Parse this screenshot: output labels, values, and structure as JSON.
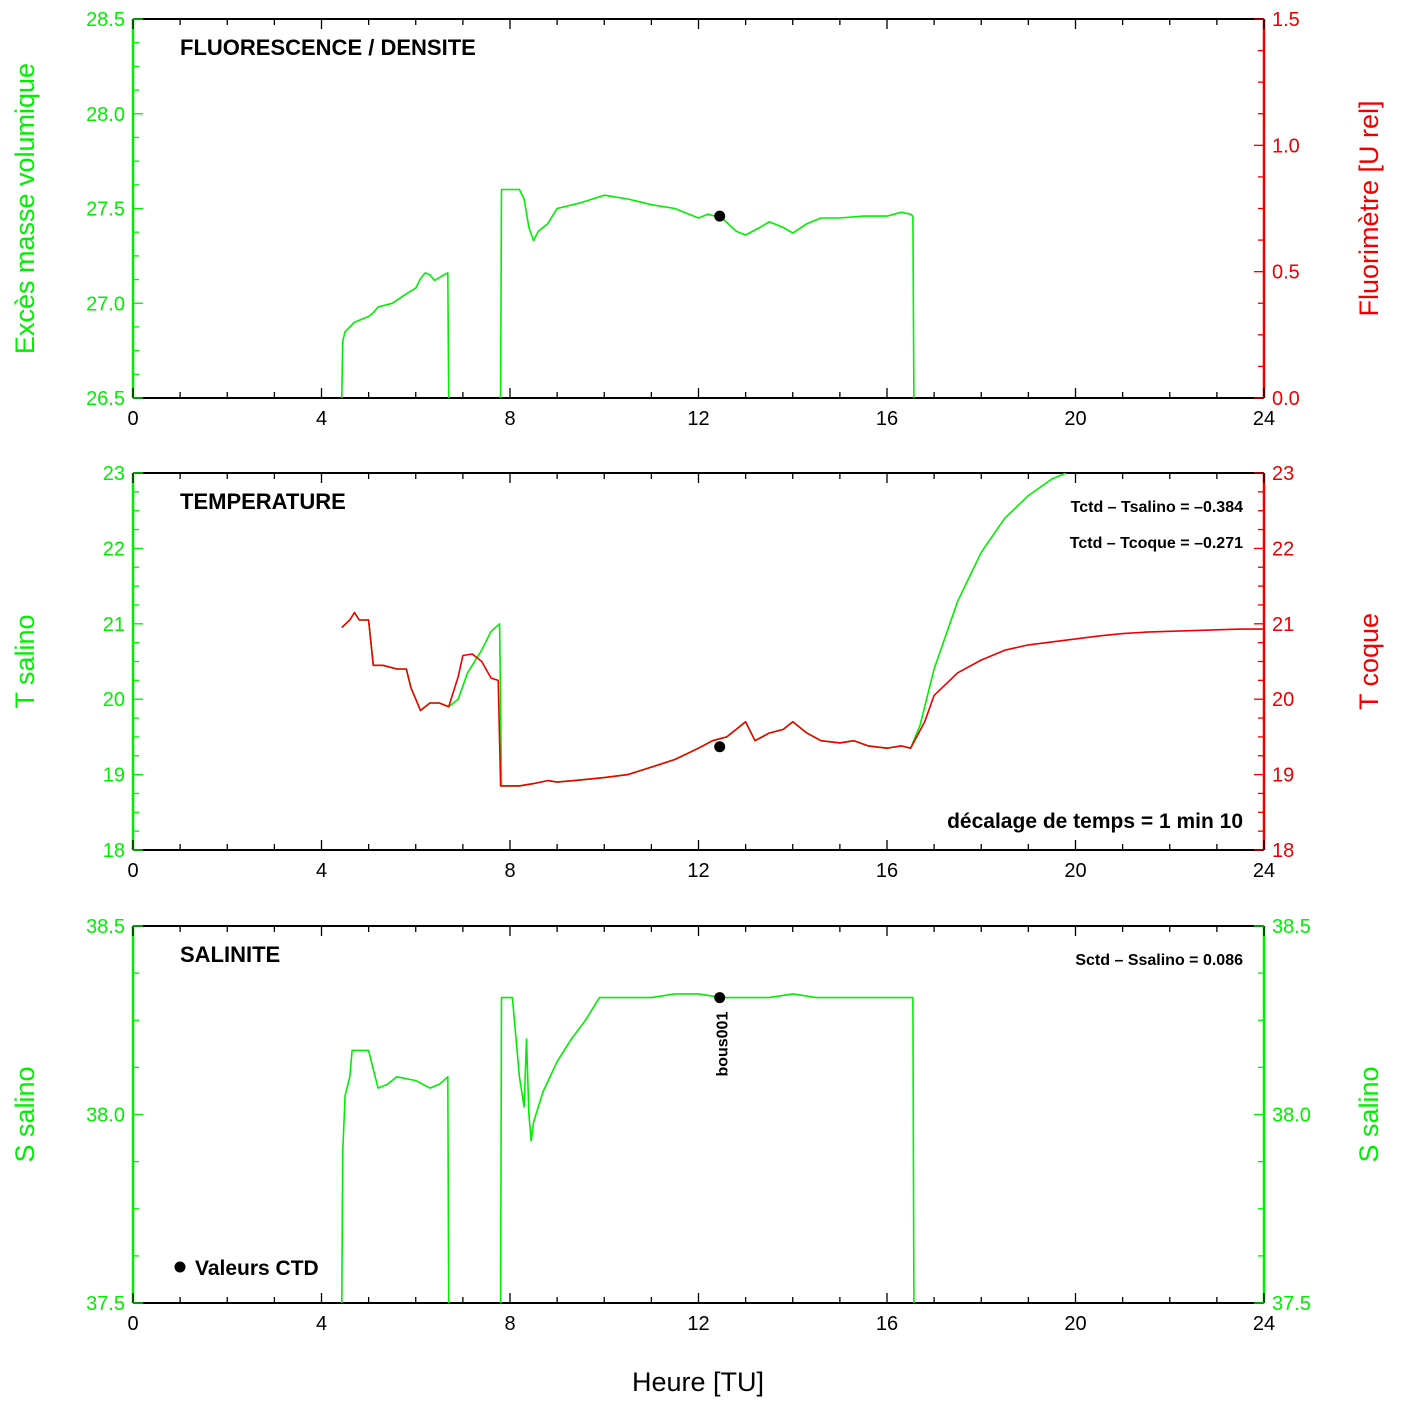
{
  "colors": {
    "green": "#00ee00",
    "red": "#ee0000",
    "black": "#000000"
  },
  "xlabel": "Heure [TU]",
  "chart_data": [
    {
      "type": "line",
      "title": "FLUORESCENCE / DENSITE",
      "xlim": [
        0,
        24
      ],
      "xticks": [
        "0",
        "4",
        "8",
        "12",
        "16",
        "20",
        "24"
      ],
      "ylabel_left": "Excès masse volumique",
      "ylabel_right": "Fluorimètre [U rel]",
      "ylim_left": [
        26.5,
        28.5
      ],
      "ylim_right": [
        0.0,
        1.5
      ],
      "yticks_left": [
        "26.5",
        "27.0",
        "27.5",
        "28.0",
        "28.5"
      ],
      "yticks_right": [
        "0.0",
        "0.5",
        "1.0",
        "1.5"
      ],
      "annotations": [],
      "ctd_points": [
        {
          "x": 12.45,
          "y": 27.46
        }
      ],
      "series": [
        {
          "color": "green",
          "segments": [
            [
              [
                4.43,
                26.5
              ],
              [
                4.45,
                26.8
              ],
              [
                4.5,
                26.85
              ],
              [
                4.7,
                26.9
              ],
              [
                4.9,
                26.92
              ],
              [
                5.0,
                26.93
              ],
              [
                5.1,
                26.95
              ],
              [
                5.2,
                26.98
              ],
              [
                5.5,
                27.0
              ],
              [
                5.8,
                27.05
              ],
              [
                6.0,
                27.08
              ],
              [
                6.1,
                27.13
              ],
              [
                6.2,
                27.16
              ],
              [
                6.3,
                27.15
              ],
              [
                6.4,
                27.12
              ],
              [
                6.6,
                27.15
              ],
              [
                6.68,
                27.16
              ],
              [
                6.7,
                26.5
              ]
            ],
            [
              [
                7.8,
                26.5
              ],
              [
                7.82,
                27.6
              ],
              [
                8.2,
                27.6
              ],
              [
                8.3,
                27.55
              ],
              [
                8.4,
                27.4
              ],
              [
                8.5,
                27.33
              ],
              [
                8.6,
                27.38
              ],
              [
                8.8,
                27.42
              ],
              [
                9.0,
                27.5
              ],
              [
                9.5,
                27.53
              ],
              [
                10.0,
                27.57
              ],
              [
                10.5,
                27.55
              ],
              [
                11.0,
                27.52
              ],
              [
                11.5,
                27.5
              ],
              [
                11.8,
                27.47
              ],
              [
                12.0,
                27.45
              ],
              [
                12.2,
                27.47
              ],
              [
                12.5,
                27.45
              ],
              [
                12.8,
                27.38
              ],
              [
                13.0,
                27.36
              ],
              [
                13.3,
                27.4
              ],
              [
                13.5,
                27.43
              ],
              [
                13.8,
                27.4
              ],
              [
                14.0,
                27.37
              ],
              [
                14.3,
                27.42
              ],
              [
                14.6,
                27.45
              ],
              [
                15.0,
                27.45
              ],
              [
                15.5,
                27.46
              ],
              [
                16.0,
                27.46
              ],
              [
                16.3,
                27.48
              ],
              [
                16.5,
                27.47
              ],
              [
                16.55,
                27.46
              ],
              [
                16.57,
                26.5
              ]
            ]
          ]
        }
      ]
    },
    {
      "type": "line",
      "title": "TEMPERATURE",
      "xlim": [
        0,
        24
      ],
      "xticks": [
        "0",
        "4",
        "8",
        "12",
        "16",
        "20",
        "24"
      ],
      "ylabel_left": "T salino",
      "ylabel_right": "T coque",
      "ylim_left": [
        18,
        23
      ],
      "ylim_right": [
        18,
        23
      ],
      "yticks_left": [
        "18",
        "19",
        "20",
        "21",
        "22",
        "23"
      ],
      "yticks_right": [
        "18",
        "19",
        "20",
        "21",
        "22",
        "23"
      ],
      "annotations": [
        "Tctd – Tsalino = –0.384",
        "Tctd – Tcoque  = –0.271"
      ],
      "bottom_annotation": "décalage de temps = 1 min 10",
      "ctd_points": [
        {
          "x": 12.45,
          "y": 19.37
        }
      ],
      "series": [
        {
          "color": "green",
          "segments": [
            [
              [
                4.43,
                20.95
              ],
              [
                4.6,
                21.05
              ],
              [
                4.7,
                21.15
              ],
              [
                4.8,
                21.05
              ],
              [
                5.0,
                21.05
              ],
              [
                5.1,
                20.45
              ],
              [
                5.3,
                20.45
              ],
              [
                5.6,
                20.4
              ],
              [
                5.8,
                20.4
              ],
              [
                5.9,
                20.15
              ],
              [
                6.0,
                20.0
              ],
              [
                6.1,
                19.85
              ],
              [
                6.3,
                19.95
              ],
              [
                6.5,
                19.95
              ],
              [
                6.7,
                19.9
              ],
              [
                6.9,
                20.0
              ],
              [
                7.1,
                20.35
              ],
              [
                7.4,
                20.65
              ],
              [
                7.6,
                20.9
              ],
              [
                7.78,
                21.0
              ],
              [
                7.82,
                18.85
              ],
              [
                8.2,
                18.85
              ],
              [
                8.5,
                18.88
              ],
              [
                8.8,
                18.92
              ],
              [
                9.0,
                18.9
              ],
              [
                9.5,
                18.93
              ],
              [
                10.0,
                18.96
              ],
              [
                10.5,
                19.0
              ],
              [
                11.0,
                19.1
              ],
              [
                11.5,
                19.2
              ],
              [
                12.0,
                19.35
              ],
              [
                12.3,
                19.45
              ],
              [
                12.6,
                19.5
              ],
              [
                12.8,
                19.6
              ],
              [
                13.0,
                19.7
              ],
              [
                13.2,
                19.45
              ],
              [
                13.5,
                19.55
              ],
              [
                13.8,
                19.6
              ],
              [
                14.0,
                19.7
              ],
              [
                14.3,
                19.55
              ],
              [
                14.6,
                19.45
              ],
              [
                15.0,
                19.42
              ],
              [
                15.3,
                19.45
              ],
              [
                15.6,
                19.38
              ],
              [
                16.0,
                19.35
              ],
              [
                16.3,
                19.38
              ],
              [
                16.5,
                19.35
              ],
              [
                16.7,
                19.65
              ],
              [
                17.0,
                20.4
              ],
              [
                17.5,
                21.3
              ],
              [
                18.0,
                21.95
              ],
              [
                18.5,
                22.4
              ],
              [
                19.0,
                22.7
              ],
              [
                19.5,
                22.92
              ],
              [
                19.8,
                23.0
              ]
            ]
          ]
        },
        {
          "color": "red",
          "segments": [
            [
              [
                4.43,
                20.95
              ],
              [
                4.6,
                21.05
              ],
              [
                4.7,
                21.15
              ],
              [
                4.8,
                21.05
              ],
              [
                5.0,
                21.05
              ],
              [
                5.1,
                20.45
              ],
              [
                5.3,
                20.45
              ],
              [
                5.6,
                20.4
              ],
              [
                5.8,
                20.4
              ],
              [
                5.9,
                20.15
              ],
              [
                6.0,
                20.0
              ],
              [
                6.1,
                19.85
              ],
              [
                6.3,
                19.95
              ],
              [
                6.5,
                19.95
              ],
              [
                6.7,
                19.9
              ],
              [
                6.9,
                20.3
              ],
              [
                7.0,
                20.58
              ],
              [
                7.2,
                20.6
              ],
              [
                7.4,
                20.5
              ],
              [
                7.6,
                20.28
              ],
              [
                7.75,
                20.25
              ],
              [
                7.8,
                18.85
              ],
              [
                8.2,
                18.85
              ],
              [
                8.5,
                18.88
              ],
              [
                8.8,
                18.92
              ],
              [
                9.0,
                18.9
              ],
              [
                9.5,
                18.93
              ],
              [
                10.0,
                18.96
              ],
              [
                10.5,
                19.0
              ],
              [
                11.0,
                19.1
              ],
              [
                11.5,
                19.2
              ],
              [
                12.0,
                19.35
              ],
              [
                12.3,
                19.45
              ],
              [
                12.6,
                19.5
              ],
              [
                12.8,
                19.6
              ],
              [
                13.0,
                19.7
              ],
              [
                13.2,
                19.45
              ],
              [
                13.5,
                19.55
              ],
              [
                13.8,
                19.6
              ],
              [
                14.0,
                19.7
              ],
              [
                14.3,
                19.55
              ],
              [
                14.6,
                19.45
              ],
              [
                15.0,
                19.42
              ],
              [
                15.3,
                19.45
              ],
              [
                15.6,
                19.38
              ],
              [
                16.0,
                19.35
              ],
              [
                16.3,
                19.38
              ],
              [
                16.5,
                19.35
              ],
              [
                16.8,
                19.7
              ],
              [
                17.0,
                20.05
              ],
              [
                17.5,
                20.35
              ],
              [
                18.0,
                20.52
              ],
              [
                18.5,
                20.65
              ],
              [
                19.0,
                20.72
              ],
              [
                19.5,
                20.76
              ],
              [
                20.0,
                20.8
              ],
              [
                20.5,
                20.84
              ],
              [
                21.0,
                20.87
              ],
              [
                21.5,
                20.89
              ],
              [
                22.0,
                20.9
              ],
              [
                22.5,
                20.91
              ],
              [
                23.0,
                20.92
              ],
              [
                23.5,
                20.93
              ],
              [
                24.0,
                20.93
              ]
            ]
          ]
        }
      ]
    },
    {
      "type": "line",
      "title": "SALINITE",
      "xlim": [
        0,
        24
      ],
      "xticks": [
        "0",
        "4",
        "8",
        "12",
        "16",
        "20",
        "24"
      ],
      "ylabel_left": "S salino",
      "ylabel_right": "S salino",
      "ylim_left": [
        37.5,
        38.5
      ],
      "ylim_right": [
        37.5,
        38.5
      ],
      "yticks_left": [
        "37.5",
        "38.0",
        "38.5"
      ],
      "yticks_right": [
        "37.5",
        "38.0",
        "38.5"
      ],
      "annotations": [
        "Sctd – Ssalino = 0.086"
      ],
      "point_label": "bous001",
      "legend_label": "Valeurs CTD",
      "ctd_points": [
        {
          "x": 12.45,
          "y": 38.31
        }
      ],
      "series": [
        {
          "color": "green",
          "segments": [
            [
              [
                4.43,
                37.5
              ],
              [
                4.45,
                37.9
              ],
              [
                4.5,
                38.05
              ],
              [
                4.6,
                38.1
              ],
              [
                4.65,
                38.17
              ],
              [
                5.0,
                38.17
              ],
              [
                5.1,
                38.12
              ],
              [
                5.2,
                38.07
              ],
              [
                5.4,
                38.08
              ],
              [
                5.6,
                38.1
              ],
              [
                6.0,
                38.09
              ],
              [
                6.3,
                38.07
              ],
              [
                6.5,
                38.08
              ],
              [
                6.68,
                38.1
              ],
              [
                6.7,
                37.5
              ]
            ],
            [
              [
                7.8,
                37.5
              ],
              [
                7.82,
                38.31
              ],
              [
                8.05,
                38.31
              ],
              [
                8.2,
                38.1
              ],
              [
                8.3,
                38.02
              ],
              [
                8.35,
                38.2
              ],
              [
                8.4,
                38.0
              ],
              [
                8.45,
                37.93
              ],
              [
                8.5,
                37.98
              ],
              [
                8.7,
                38.06
              ],
              [
                9.0,
                38.14
              ],
              [
                9.3,
                38.2
              ],
              [
                9.6,
                38.25
              ],
              [
                9.9,
                38.31
              ],
              [
                10.5,
                38.31
              ],
              [
                11.0,
                38.31
              ],
              [
                11.5,
                38.32
              ],
              [
                12.0,
                38.32
              ],
              [
                12.5,
                38.31
              ],
              [
                13.0,
                38.31
              ],
              [
                13.5,
                38.31
              ],
              [
                14.0,
                38.32
              ],
              [
                14.5,
                38.31
              ],
              [
                15.0,
                38.31
              ],
              [
                15.5,
                38.31
              ],
              [
                16.0,
                38.31
              ],
              [
                16.5,
                38.31
              ],
              [
                16.55,
                38.31
              ],
              [
                16.57,
                37.5
              ]
            ]
          ]
        }
      ]
    }
  ]
}
